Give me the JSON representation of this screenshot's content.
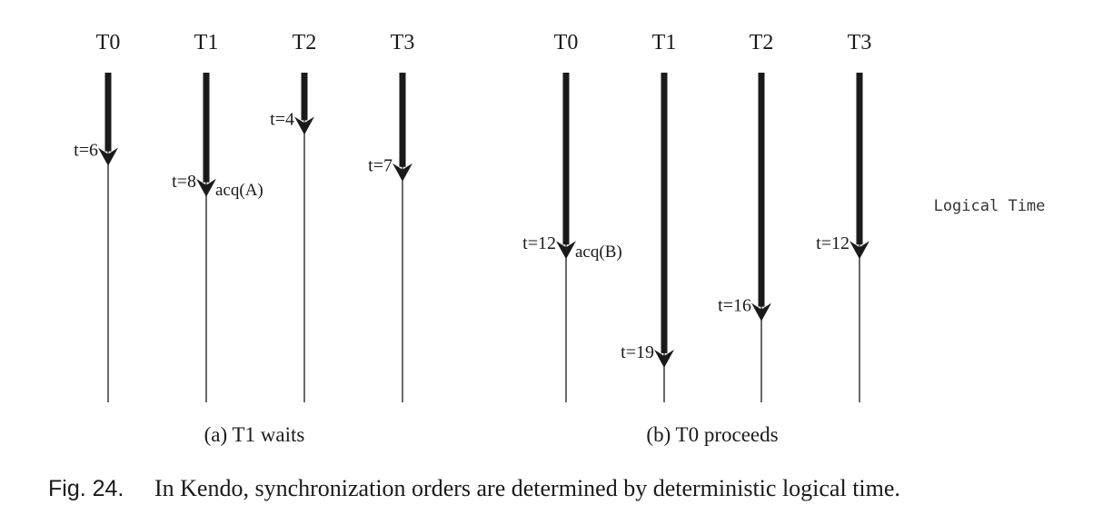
{
  "panels": [
    {
      "caption": "(a) T1 waits",
      "threads": [
        {
          "name": "T0",
          "time_label": "t=6",
          "logical_time": 6,
          "annotation": ""
        },
        {
          "name": "T1",
          "time_label": "t=8",
          "logical_time": 8,
          "annotation": "acq(A)"
        },
        {
          "name": "T2",
          "time_label": "t=4",
          "logical_time": 4,
          "annotation": ""
        },
        {
          "name": "T3",
          "time_label": "t=7",
          "logical_time": 7,
          "annotation": ""
        }
      ]
    },
    {
      "caption": "(b) T0 proceeds",
      "threads": [
        {
          "name": "T0",
          "time_label": "t=12",
          "logical_time": 12,
          "annotation": "acq(B)"
        },
        {
          "name": "T1",
          "time_label": "t=19",
          "logical_time": 19,
          "annotation": ""
        },
        {
          "name": "T2",
          "time_label": "t=16",
          "logical_time": 16,
          "annotation": ""
        },
        {
          "name": "T3",
          "time_label": "t=12",
          "logical_time": 12,
          "annotation": ""
        }
      ]
    }
  ],
  "legend": "Logical Time",
  "figure_caption": {
    "prefix": "Fig. 24.",
    "text": "In Kendo, synchronization orders are determined by deterministic logical time."
  },
  "colors": {
    "ink": "#1a1a1a"
  }
}
